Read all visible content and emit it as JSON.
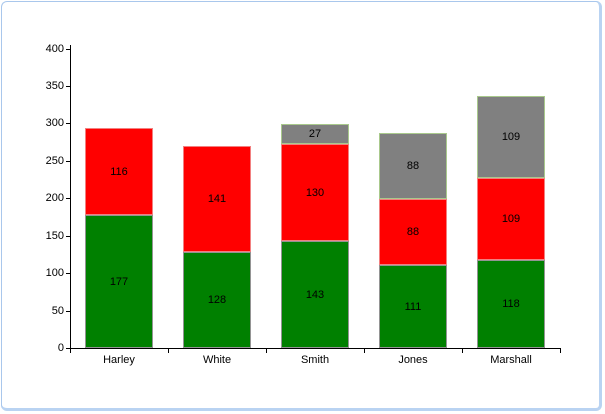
{
  "chart_data": {
    "type": "bar",
    "stacked": true,
    "title": "",
    "xlabel": "",
    "ylabel": "",
    "categories": [
      "Harley",
      "White",
      "Smith",
      "Jones",
      "Marshall"
    ],
    "series": [
      {
        "name": "green-series",
        "color": "#008000",
        "border_color": "#949494",
        "values": [
          177,
          128,
          143,
          111,
          118
        ]
      },
      {
        "name": "red-series",
        "color": "#ff0000",
        "border_color": "#f28080",
        "values": [
          116,
          141,
          130,
          88,
          109
        ]
      },
      {
        "name": "gray-series",
        "color": "#808080",
        "border_color": "#a9c98c",
        "values": [
          0,
          0,
          27,
          88,
          109
        ]
      }
    ],
    "totals": [
      293,
      269,
      300,
      287,
      336
    ],
    "ylim": [
      0,
      400
    ],
    "ytick_step": 50,
    "yticks": [
      0,
      50,
      100,
      150,
      200,
      250,
      300,
      350,
      400
    ],
    "grid": false,
    "legend": "none",
    "data_labels": true,
    "axis_color": "#000000"
  },
  "frame": {
    "background": "#ffffff",
    "border_color": "#aecbee"
  }
}
